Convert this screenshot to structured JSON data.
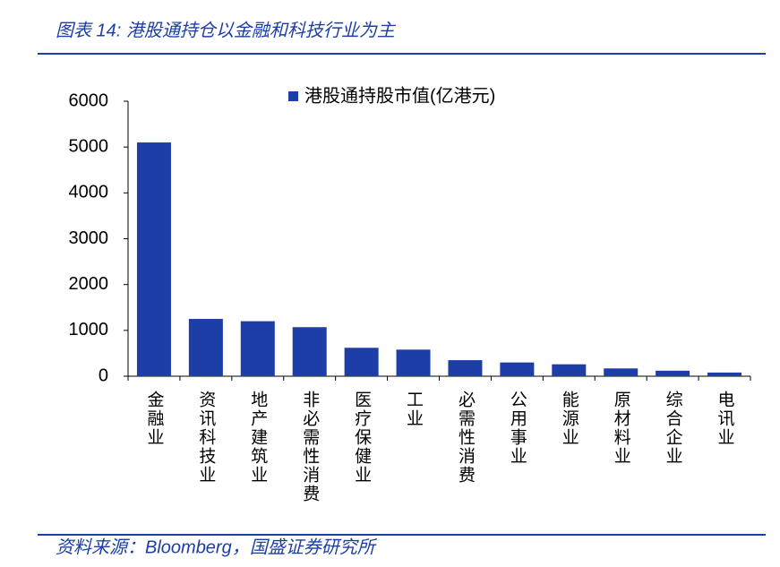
{
  "chart_data": {
    "type": "bar",
    "title": "图表 14: 港股通持仓以金融和科技行业为主",
    "source": "资料来源：Bloomberg，国盛证券研究所",
    "categories": [
      "金融业",
      "资讯科技业",
      "地产建筑业",
      "非必需性消费",
      "医疗保健业",
      "工业",
      "必需性消费",
      "公用事业",
      "能源业",
      "原材料业",
      "综合企业",
      "电讯业"
    ],
    "series": [
      {
        "name": "港股通持股市值(亿港元)",
        "color": "#1c3ea6",
        "values": [
          5100,
          1250,
          1200,
          1070,
          620,
          580,
          350,
          300,
          260,
          170,
          120,
          80
        ]
      }
    ],
    "ylim": [
      0,
      6000
    ],
    "yticks": [
      0,
      1000,
      2000,
      3000,
      4000,
      5000,
      6000
    ],
    "grid": false
  }
}
